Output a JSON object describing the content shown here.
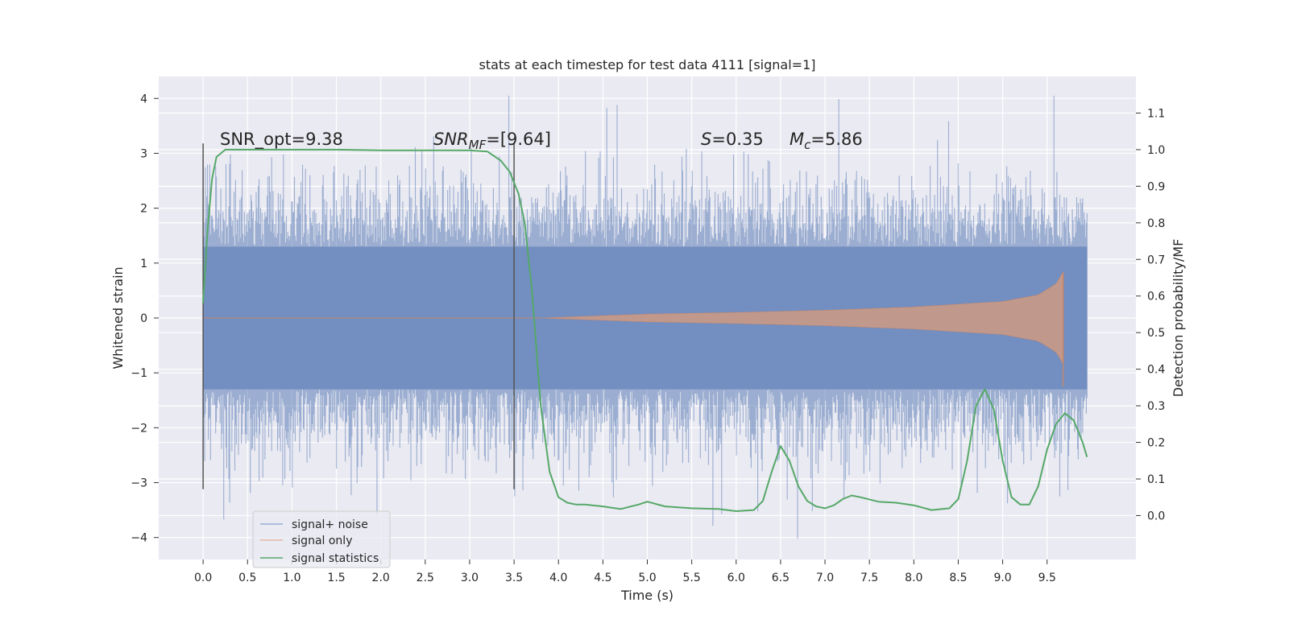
{
  "chart_data": {
    "type": "line",
    "title": "stats at each timestep for test data 4111 [signal=1]",
    "xlabel": "Time (s)",
    "ylabel": "Whitened strain",
    "ylabel_right": "Detection probability/MF",
    "xlim": [
      -0.5,
      10.5
    ],
    "ylim": [
      -4.4,
      4.4
    ],
    "ylim_right": [
      -0.12,
      1.2
    ],
    "x_ticks": [
      "0.0",
      "0.5",
      "1.0",
      "1.5",
      "2.0",
      "2.5",
      "3.0",
      "3.5",
      "4.0",
      "4.5",
      "5.0",
      "5.5",
      "6.0",
      "6.5",
      "7.0",
      "7.5",
      "8.0",
      "8.5",
      "9.0",
      "9.5"
    ],
    "y_ticks": [
      "−4",
      "−3",
      "−2",
      "−1",
      "0",
      "1",
      "2",
      "3",
      "4"
    ],
    "y_ticks_right": [
      "0.0",
      "0.1",
      "0.2",
      "0.3",
      "0.4",
      "0.5",
      "0.6",
      "0.7",
      "0.8",
      "0.9",
      "1.0",
      "1.1"
    ],
    "grid": true,
    "legend": {
      "placement": "lower-left",
      "entries": [
        "signal+ noise",
        "signal only",
        "signal statistics"
      ]
    },
    "annotations": {
      "snr_opt": "SNR_opt=9.38",
      "snr_mf_label": "SNR",
      "snr_mf_sub": "MF",
      "snr_mf_value": "=[9.64]",
      "s_label": "S",
      "s_value": "=0.35",
      "mc_label": "M",
      "mc_sub": "c",
      "mc_value": "=5.86"
    },
    "vertical_markers_x": [
      0.0,
      3.5
    ],
    "series": [
      {
        "name": "signal+ noise",
        "kind": "noise",
        "x_range": [
          0.0,
          9.95
        ],
        "core_amplitude": 1.3,
        "max_abs": 4.05
      },
      {
        "name": "signal only",
        "kind": "chirp",
        "x_range": [
          3.8,
          9.68
        ],
        "envelope": [
          [
            3.8,
            0.0
          ],
          [
            5.0,
            0.07
          ],
          [
            6.0,
            0.1
          ],
          [
            7.0,
            0.14
          ],
          [
            8.0,
            0.2
          ],
          [
            9.0,
            0.3
          ],
          [
            9.4,
            0.42
          ],
          [
            9.6,
            0.62
          ],
          [
            9.68,
            0.83
          ]
        ]
      },
      {
        "name": "signal statistics",
        "kind": "line",
        "x": [
          0.0,
          0.05,
          0.1,
          0.15,
          0.25,
          0.4,
          0.6,
          1.0,
          1.5,
          2.0,
          2.5,
          3.0,
          3.2,
          3.35,
          3.45,
          3.55,
          3.62,
          3.7,
          3.8,
          3.9,
          4.0,
          4.1,
          4.2,
          4.3,
          4.5,
          4.7,
          4.9,
          5.0,
          5.2,
          5.5,
          5.8,
          6.0,
          6.2,
          6.3,
          6.4,
          6.5,
          6.6,
          6.7,
          6.8,
          6.9,
          7.0,
          7.1,
          7.2,
          7.3,
          7.4,
          7.6,
          7.8,
          8.0,
          8.2,
          8.4,
          8.5,
          8.6,
          8.7,
          8.8,
          8.9,
          9.0,
          9.1,
          9.2,
          9.3,
          9.4,
          9.5,
          9.6,
          9.7,
          9.8,
          9.9,
          9.95
        ],
        "y": [
          0.58,
          0.78,
          0.92,
          0.98,
          1.0,
          1.0,
          1.0,
          1.0,
          1.0,
          0.998,
          0.998,
          0.998,
          0.995,
          0.97,
          0.94,
          0.88,
          0.8,
          0.62,
          0.3,
          0.12,
          0.05,
          0.035,
          0.03,
          0.03,
          0.025,
          0.018,
          0.03,
          0.038,
          0.025,
          0.02,
          0.018,
          0.012,
          0.015,
          0.04,
          0.12,
          0.19,
          0.15,
          0.08,
          0.04,
          0.025,
          0.02,
          0.028,
          0.045,
          0.055,
          0.05,
          0.038,
          0.035,
          0.028,
          0.015,
          0.02,
          0.045,
          0.15,
          0.3,
          0.345,
          0.29,
          0.15,
          0.05,
          0.03,
          0.03,
          0.08,
          0.18,
          0.25,
          0.28,
          0.26,
          0.2,
          0.16
        ]
      }
    ]
  }
}
